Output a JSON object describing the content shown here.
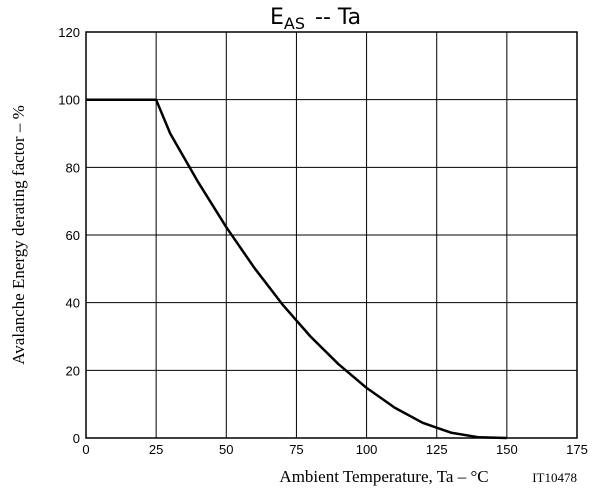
{
  "chart_data": {
    "type": "line",
    "title_main": "E",
    "title_sub": "AS",
    "title_rest": "-- Ta",
    "xlabel": "Ambient Temperature, Ta  –  °C",
    "ylabel": "Avalanche Energy derating factor  –  %",
    "code": "IT10478",
    "xlim": [
      0,
      175
    ],
    "ylim": [
      0,
      120
    ],
    "x_ticks": [
      0,
      25,
      50,
      75,
      100,
      125,
      150,
      175
    ],
    "y_ticks": [
      0,
      20,
      40,
      60,
      80,
      100,
      120
    ],
    "grid": true,
    "series": [
      {
        "color": "#000000",
        "x": [
          0,
          25,
          30,
          40,
          50,
          60,
          70,
          80,
          90,
          100,
          110,
          120,
          130,
          140,
          150
        ],
        "y": [
          100,
          100,
          90,
          75.6,
          62.3,
          50.3,
          39.5,
          30,
          21.8,
          14.8,
          9.0,
          4.5,
          1.6,
          0.2,
          0
        ]
      }
    ]
  }
}
